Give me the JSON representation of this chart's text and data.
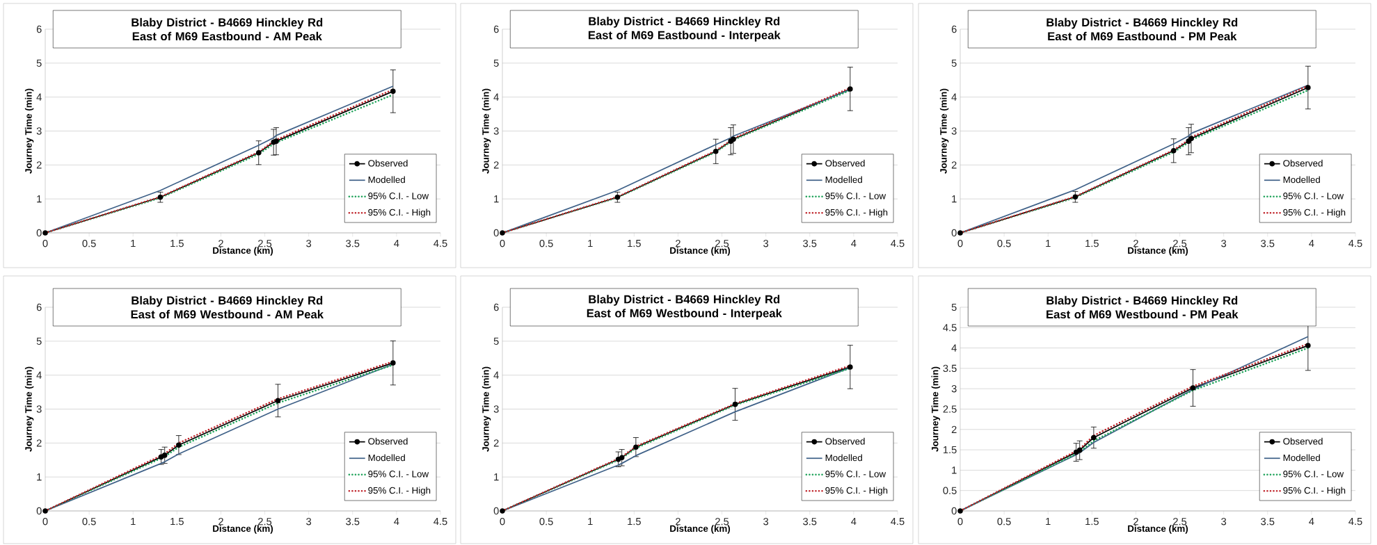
{
  "chart_data": [
    {
      "type": "line",
      "title": "Blaby District - B4669 Hinckley Rd East of M69 Eastbound - AM Peak",
      "xlabel": "Distance (km)",
      "ylabel": "Journey Time (min)",
      "xlim": [
        0,
        4.5
      ],
      "ylim": [
        0,
        6
      ],
      "xticks": [
        0,
        0.5,
        1,
        1.5,
        2,
        2.5,
        3,
        3.5,
        4,
        4.5
      ],
      "yticks": [
        0,
        1,
        2,
        3,
        4,
        5,
        6
      ],
      "grid": "y",
      "legend": "bottom right",
      "x": [
        0,
        1.31,
        2.43,
        2.6,
        2.63,
        3.96
      ],
      "series": [
        {
          "name": "Observed",
          "color": "#000000",
          "marker": "circle",
          "line_style": "solid",
          "values": [
            0,
            1.05,
            2.36,
            2.67,
            2.7,
            4.17
          ],
          "errors": [
            null,
            0.15,
            0.35,
            0.38,
            0.4,
            0.63
          ]
        },
        {
          "name": "Modelled",
          "color": "#3f6188",
          "marker": "none",
          "line_style": "solid",
          "values": [
            0,
            1.25,
            2.58,
            2.8,
            2.87,
            4.32
          ]
        },
        {
          "name": "95% C.I. - Low",
          "color": "#1fa35a",
          "marker": "none",
          "line_style": "dotted",
          "values": [
            0,
            1.03,
            2.32,
            2.62,
            2.66,
            4.07
          ]
        },
        {
          "name": "95% C.I. - High",
          "color": "#c0272d",
          "marker": "none",
          "line_style": "dotted",
          "values": [
            0,
            1.06,
            2.38,
            2.7,
            2.74,
            4.22
          ]
        }
      ]
    },
    {
      "type": "line",
      "title": "Blaby District - B4669 Hinckley Rd East of M69 Eastbound - Interpeak",
      "xlabel": "Distance (km)",
      "ylabel": "Journey Time (min)",
      "xlim": [
        0,
        4.5
      ],
      "ylim": [
        0,
        6
      ],
      "xticks": [
        0,
        0.5,
        1,
        1.5,
        2,
        2.5,
        3,
        3.5,
        4,
        4.5
      ],
      "yticks": [
        0,
        1,
        2,
        3,
        4,
        5,
        6
      ],
      "grid": "y",
      "legend": "bottom right",
      "x": [
        0,
        1.31,
        2.43,
        2.6,
        2.63,
        3.96
      ],
      "series": [
        {
          "name": "Observed",
          "color": "#000000",
          "marker": "circle",
          "line_style": "solid",
          "values": [
            0,
            1.05,
            2.4,
            2.7,
            2.76,
            4.24
          ],
          "errors": [
            null,
            0.15,
            0.36,
            0.4,
            0.42,
            0.64
          ]
        },
        {
          "name": "Modelled",
          "color": "#3f6188",
          "marker": "none",
          "line_style": "solid",
          "values": [
            0,
            1.25,
            2.6,
            2.8,
            2.85,
            4.22
          ]
        },
        {
          "name": "95% C.I. - Low",
          "color": "#1fa35a",
          "marker": "none",
          "line_style": "dotted",
          "values": [
            0,
            1.04,
            2.38,
            2.68,
            2.74,
            4.2
          ]
        },
        {
          "name": "95% C.I. - High",
          "color": "#c0272d",
          "marker": "none",
          "line_style": "dotted",
          "values": [
            0,
            1.06,
            2.42,
            2.72,
            2.78,
            4.27
          ]
        }
      ]
    },
    {
      "type": "line",
      "title": "Blaby District - B4669 Hinckley Rd East of M69 Eastbound - PM Peak",
      "xlabel": "Distance (km)",
      "ylabel": "Journey Time (min)",
      "xlim": [
        0,
        4.5
      ],
      "ylim": [
        0,
        6
      ],
      "xticks": [
        0,
        0.5,
        1,
        1.5,
        2,
        2.5,
        3,
        3.5,
        4,
        4.5
      ],
      "yticks": [
        0,
        1,
        2,
        3,
        4,
        5,
        6
      ],
      "grid": "y",
      "legend": "bottom right",
      "x": [
        0,
        1.31,
        2.43,
        2.6,
        2.63,
        3.96
      ],
      "series": [
        {
          "name": "Observed",
          "color": "#000000",
          "marker": "circle",
          "line_style": "solid",
          "values": [
            0,
            1.06,
            2.42,
            2.7,
            2.78,
            4.28
          ],
          "errors": [
            null,
            0.16,
            0.35,
            0.4,
            0.42,
            0.63
          ]
        },
        {
          "name": "Modelled",
          "color": "#3f6188",
          "marker": "none",
          "line_style": "solid",
          "values": [
            0,
            1.27,
            2.62,
            2.85,
            2.93,
            4.35
          ]
        },
        {
          "name": "95% C.I. - Low",
          "color": "#1fa35a",
          "marker": "none",
          "line_style": "dotted",
          "values": [
            0,
            1.04,
            2.38,
            2.66,
            2.74,
            4.2
          ]
        },
        {
          "name": "95% C.I. - High",
          "color": "#c0272d",
          "marker": "none",
          "line_style": "dotted",
          "values": [
            0,
            1.07,
            2.44,
            2.74,
            2.82,
            4.33
          ]
        }
      ]
    },
    {
      "type": "line",
      "title": "Blaby District - B4669 Hinckley Rd East of M69 Westbound - AM Peak",
      "xlabel": "Distance (km)",
      "ylabel": "Journey Time (min)",
      "xlim": [
        0,
        4.5
      ],
      "ylim": [
        0,
        6
      ],
      "xticks": [
        0,
        0.5,
        1,
        1.5,
        2,
        2.5,
        3,
        3.5,
        4,
        4.5
      ],
      "yticks": [
        0,
        1,
        2,
        3,
        4,
        5,
        6
      ],
      "grid": "y",
      "legend": "bottom right",
      "x": [
        0,
        1.32,
        1.36,
        1.52,
        2.65,
        3.96
      ],
      "series": [
        {
          "name": "Observed",
          "color": "#000000",
          "marker": "circle",
          "line_style": "solid",
          "values": [
            0,
            1.59,
            1.64,
            1.94,
            3.25,
            4.36
          ],
          "errors": [
            null,
            0.22,
            0.24,
            0.28,
            0.48,
            0.65
          ]
        },
        {
          "name": "Modelled",
          "color": "#3f6188",
          "marker": "none",
          "line_style": "solid",
          "values": [
            0,
            1.4,
            1.45,
            1.68,
            3.0,
            4.32
          ]
        },
        {
          "name": "95% C.I. - Low",
          "color": "#1fa35a",
          "marker": "none",
          "line_style": "dotted",
          "values": [
            0,
            1.55,
            1.6,
            1.88,
            3.18,
            4.3
          ]
        },
        {
          "name": "95% C.I. - High",
          "color": "#c0272d",
          "marker": "none",
          "line_style": "dotted",
          "values": [
            0,
            1.63,
            1.68,
            2.0,
            3.3,
            4.4
          ]
        }
      ]
    },
    {
      "type": "line",
      "title": "Blaby District - B4669 Hinckley Rd East of M69 Westbound - Interpeak",
      "xlabel": "Distance (km)",
      "ylabel": "Journey Time (min)",
      "xlim": [
        0,
        4.5
      ],
      "ylim": [
        0,
        6
      ],
      "xticks": [
        0,
        0.5,
        1,
        1.5,
        2,
        2.5,
        3,
        3.5,
        4,
        4.5
      ],
      "yticks": [
        0,
        1,
        2,
        3,
        4,
        5,
        6
      ],
      "grid": "y",
      "legend": "bottom right",
      "x": [
        0,
        1.32,
        1.36,
        1.52,
        2.65,
        3.96
      ],
      "series": [
        {
          "name": "Observed",
          "color": "#000000",
          "marker": "circle",
          "line_style": "solid",
          "values": [
            0,
            1.52,
            1.57,
            1.88,
            3.14,
            4.24
          ],
          "errors": [
            null,
            0.22,
            0.24,
            0.28,
            0.47,
            0.64
          ]
        },
        {
          "name": "Modelled",
          "color": "#3f6188",
          "marker": "none",
          "line_style": "solid",
          "values": [
            0,
            1.35,
            1.4,
            1.63,
            2.92,
            4.22
          ]
        },
        {
          "name": "95% C.I. - Low",
          "color": "#1fa35a",
          "marker": "none",
          "line_style": "dotted",
          "values": [
            0,
            1.5,
            1.55,
            1.85,
            3.12,
            4.2
          ]
        },
        {
          "name": "95% C.I. - High",
          "color": "#c0272d",
          "marker": "none",
          "line_style": "dotted",
          "values": [
            0,
            1.54,
            1.59,
            1.9,
            3.16,
            4.28
          ]
        }
      ]
    },
    {
      "type": "line",
      "title": "Blaby District - B4669 Hinckley Rd East of M69 Westbound - PM Peak",
      "xlabel": "Distance (km)",
      "ylabel": "Journey Time (min)",
      "xlim": [
        0,
        4.5
      ],
      "ylim": [
        0,
        5
      ],
      "xticks": [
        0,
        0.5,
        1,
        1.5,
        2,
        2.5,
        3,
        3.5,
        4,
        4.5
      ],
      "yticks": [
        0,
        0.5,
        1,
        1.5,
        2,
        2.5,
        3,
        3.5,
        4,
        4.5,
        5
      ],
      "grid": "y",
      "legend": "bottom right",
      "x": [
        0,
        1.32,
        1.36,
        1.52,
        2.65,
        3.96
      ],
      "series": [
        {
          "name": "Observed",
          "color": "#000000",
          "marker": "circle",
          "line_style": "solid",
          "values": [
            0,
            1.44,
            1.49,
            1.8,
            3.02,
            4.06
          ],
          "errors": [
            null,
            0.22,
            0.23,
            0.26,
            0.45,
            0.61
          ]
        },
        {
          "name": "Modelled",
          "color": "#3f6188",
          "marker": "none",
          "line_style": "solid",
          "values": [
            0,
            1.38,
            1.43,
            1.68,
            2.98,
            4.28
          ]
        },
        {
          "name": "95% C.I. - Low",
          "color": "#1fa35a",
          "marker": "none",
          "line_style": "dotted",
          "values": [
            0,
            1.4,
            1.45,
            1.72,
            2.96,
            4.0
          ]
        },
        {
          "name": "95% C.I. - High",
          "color": "#c0272d",
          "marker": "none",
          "line_style": "dotted",
          "values": [
            0,
            1.47,
            1.52,
            1.85,
            3.06,
            4.1
          ]
        }
      ]
    }
  ]
}
